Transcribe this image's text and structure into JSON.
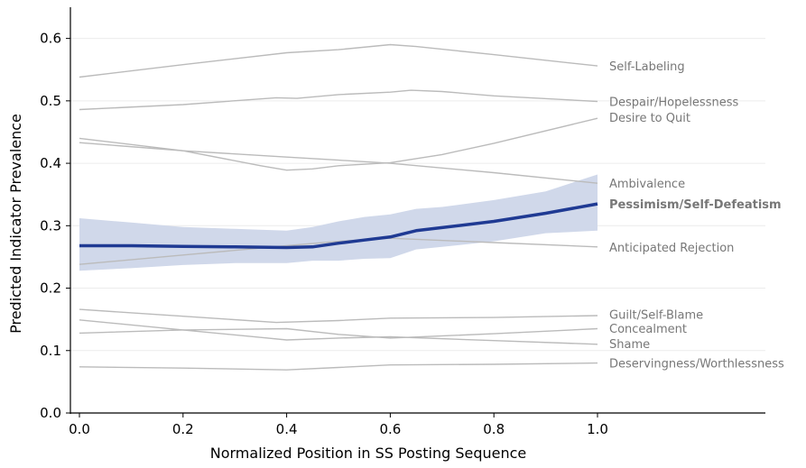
{
  "chart_data": {
    "type": "line",
    "xlabel": "Normalized Position in SS Posting Sequence",
    "ylabel": "Predicted Indicator Prevalence",
    "xlim": [
      0,
      1
    ],
    "ylim": [
      0,
      0.65
    ],
    "xticks": [
      "0.0",
      "0.2",
      "0.4",
      "0.6",
      "0.8",
      "1.0"
    ],
    "yticks": [
      "0.0",
      "0.1",
      "0.2",
      "0.3",
      "0.4",
      "0.5",
      "0.6"
    ],
    "grid": "horizontal",
    "colors": {
      "muted": "#bbbbbb",
      "highlight": "#1f3a93",
      "band": "#d0d8ea",
      "muted_label": "#777777"
    },
    "highlight": {
      "name": "Pessimism/Self-Defeatism",
      "x": [
        0,
        0.1,
        0.2,
        0.3,
        0.4,
        0.45,
        0.5,
        0.55,
        0.6,
        0.65,
        0.7,
        0.8,
        0.9,
        1.0
      ],
      "y": [
        0.268,
        0.268,
        0.267,
        0.266,
        0.265,
        0.266,
        0.272,
        0.277,
        0.282,
        0.292,
        0.297,
        0.307,
        0.32,
        0.335
      ],
      "ci_lower": [
        0.228,
        0.232,
        0.237,
        0.24,
        0.24,
        0.244,
        0.244,
        0.247,
        0.248,
        0.262,
        0.266,
        0.275,
        0.288,
        0.292
      ],
      "ci_upper": [
        0.312,
        0.305,
        0.298,
        0.295,
        0.292,
        0.298,
        0.307,
        0.314,
        0.318,
        0.327,
        0.33,
        0.341,
        0.355,
        0.382
      ]
    },
    "series": [
      {
        "name": "Self-Labeling",
        "x": [
          0,
          0.2,
          0.4,
          0.5,
          0.6,
          0.65,
          0.8,
          1.0
        ],
        "y": [
          0.538,
          0.558,
          0.577,
          0.582,
          0.59,
          0.587,
          0.574,
          0.556
        ]
      },
      {
        "name": "Despair/Hopelessness",
        "x": [
          0,
          0.2,
          0.38,
          0.42,
          0.5,
          0.6,
          0.64,
          0.7,
          0.8,
          1.0
        ],
        "y": [
          0.486,
          0.494,
          0.505,
          0.504,
          0.51,
          0.514,
          0.517,
          0.515,
          0.508,
          0.499
        ]
      },
      {
        "name": "Desire to Quit",
        "x": [
          0,
          0.2,
          0.35,
          0.4,
          0.45,
          0.5,
          0.6,
          0.7,
          0.8,
          1.0
        ],
        "y": [
          0.44,
          0.42,
          0.396,
          0.389,
          0.391,
          0.396,
          0.401,
          0.414,
          0.432,
          0.472
        ]
      },
      {
        "name": "Ambivalence",
        "x": [
          0,
          0.2,
          0.4,
          0.5,
          0.6,
          0.8,
          1.0
        ],
        "y": [
          0.433,
          0.42,
          0.41,
          0.405,
          0.4,
          0.385,
          0.368
        ]
      },
      {
        "name": "Anticipated Rejection",
        "x": [
          0,
          0.2,
          0.4,
          0.5,
          0.6,
          0.8,
          1.0
        ],
        "y": [
          0.238,
          0.253,
          0.268,
          0.275,
          0.28,
          0.273,
          0.266
        ]
      },
      {
        "name": "Guilt/Self-Blame",
        "x": [
          0,
          0.2,
          0.38,
          0.5,
          0.6,
          0.8,
          1.0
        ],
        "y": [
          0.166,
          0.155,
          0.145,
          0.148,
          0.152,
          0.153,
          0.156
        ]
      },
      {
        "name": "Concealment",
        "x": [
          0,
          0.2,
          0.4,
          0.5,
          0.6,
          0.8,
          1.0
        ],
        "y": [
          0.128,
          0.133,
          0.135,
          0.126,
          0.12,
          0.127,
          0.135
        ]
      },
      {
        "name": "Shame",
        "x": [
          0,
          0.2,
          0.35,
          0.4,
          0.5,
          0.6,
          0.8,
          1.0
        ],
        "y": [
          0.149,
          0.133,
          0.121,
          0.117,
          0.12,
          0.122,
          0.116,
          0.11
        ]
      },
      {
        "name": "Deservingness/Worthlessness",
        "x": [
          0,
          0.2,
          0.4,
          0.5,
          0.6,
          0.8,
          1.0
        ],
        "y": [
          0.074,
          0.072,
          0.069,
          0.073,
          0.077,
          0.078,
          0.08
        ]
      }
    ]
  }
}
